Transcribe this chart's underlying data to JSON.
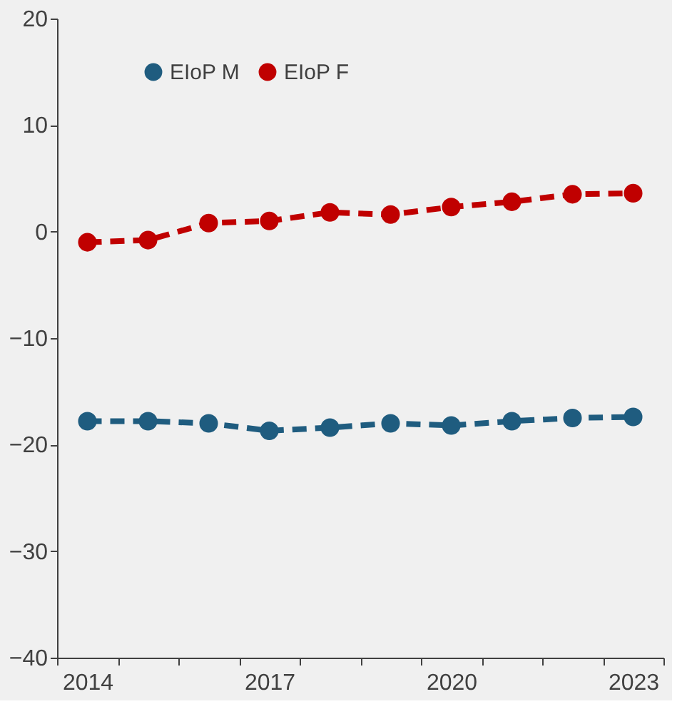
{
  "chart_data": {
    "type": "line",
    "categories": [
      "2014",
      null,
      null,
      "2017",
      null,
      null,
      "2020",
      null,
      null,
      "2023"
    ],
    "series": [
      {
        "name": "EIoP M",
        "color": "#1f5c7f",
        "values": [
          -17.8,
          -17.8,
          -18.0,
          -18.7,
          -18.4,
          -18.0,
          -18.2,
          -17.8,
          -17.5,
          -17.4
        ]
      },
      {
        "name": "EIoP F",
        "color": "#c00000",
        "values": [
          -1.0,
          -0.8,
          0.8,
          1.0,
          1.8,
          1.6,
          2.3,
          2.8,
          3.5,
          3.6
        ]
      }
    ],
    "ylim": [
      -40,
      20
    ],
    "yticks": [
      -40,
      -30,
      -20,
      -10,
      0,
      10,
      20
    ],
    "grid": false,
    "legend": "top",
    "marker": "circle",
    "line_style": "dashed"
  }
}
